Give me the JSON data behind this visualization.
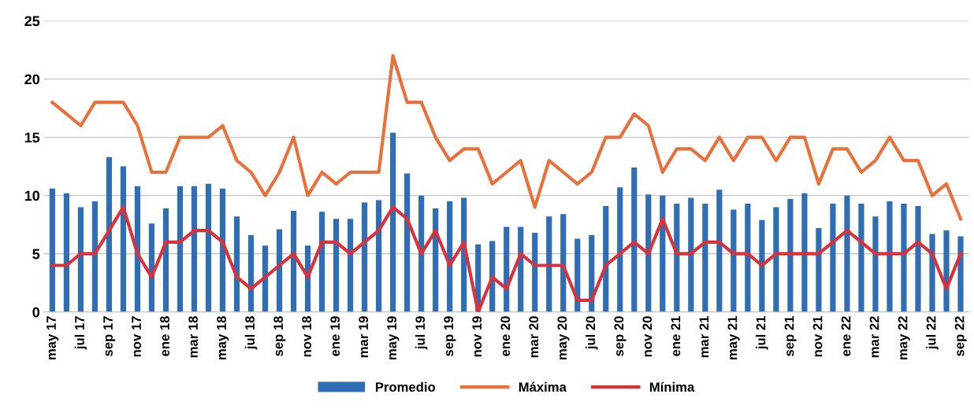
{
  "chart_data": {
    "type": "bar",
    "categories": [
      "may 17",
      null,
      "jul 17",
      null,
      "sep 17",
      null,
      "nov 17",
      null,
      "ene 18",
      null,
      "mar 18",
      null,
      "may 18",
      null,
      "jul 18",
      null,
      "sep 18",
      null,
      "nov 18",
      null,
      "ene 19",
      null,
      "mar 19",
      null,
      "may 19",
      null,
      "jul 19",
      null,
      "sep 19",
      null,
      "nov 19",
      null,
      "ene 20",
      null,
      "mar 20",
      null,
      "may 20",
      null,
      "jul 20",
      null,
      "sep 20",
      null,
      "nov 20",
      null,
      "ene 21",
      null,
      "mar 21",
      null,
      "may 21",
      null,
      "jul 21",
      null,
      "sep 21",
      null,
      "nov 21",
      null,
      "ene 22",
      null,
      "mar 22",
      null,
      "may 22",
      null,
      "jul 22",
      null,
      "sep 22"
    ],
    "series": [
      {
        "name": "Promedio",
        "color": "#2f6db5",
        "values": [
          10.6,
          10.2,
          9.0,
          9.5,
          13.3,
          12.5,
          10.8,
          7.6,
          8.9,
          10.8,
          10.8,
          11.0,
          10.6,
          8.2,
          6.6,
          5.7,
          7.1,
          8.7,
          5.7,
          8.6,
          8.0,
          8.0,
          9.4,
          9.6,
          15.4,
          11.9,
          10.0,
          8.9,
          9.5,
          9.8,
          5.8,
          6.1,
          7.3,
          7.3,
          6.8,
          8.2,
          8.4,
          6.3,
          6.6,
          9.1,
          10.7,
          12.4,
          10.1,
          10.0,
          9.3,
          9.8,
          9.3,
          10.5,
          8.8,
          9.3,
          7.9,
          9.0,
          9.7,
          10.2,
          7.2,
          9.3,
          10.0,
          9.3,
          8.2,
          9.5,
          9.3,
          9.1,
          6.7,
          7.0,
          6.5
        ]
      },
      {
        "name": "Máxima",
        "type": "line",
        "color": "#e8703a",
        "values": [
          18,
          17,
          16,
          18,
          18,
          18,
          16,
          12,
          12,
          15,
          15,
          15,
          16,
          13,
          12,
          10,
          12,
          15,
          10,
          12,
          11,
          12,
          12,
          12,
          22,
          18,
          18,
          15,
          13,
          14,
          14,
          11,
          12,
          13,
          9,
          13,
          12,
          11,
          12,
          15,
          15,
          17,
          16,
          12,
          14,
          14,
          13,
          15,
          13,
          15,
          15,
          13,
          15,
          15,
          11,
          14,
          14,
          12,
          13,
          15,
          13,
          13,
          10,
          11,
          8
        ]
      },
      {
        "name": "Mínima",
        "type": "line",
        "color": "#d9323a",
        "values": [
          4,
          4,
          5,
          5,
          7,
          9,
          5,
          3,
          6,
          6,
          7,
          7,
          6,
          3,
          2,
          3,
          4,
          5,
          3,
          6,
          6,
          5,
          6,
          7,
          9,
          8,
          5,
          7,
          4,
          6,
          0,
          3,
          2,
          5,
          4,
          4,
          4,
          1,
          1,
          4,
          5,
          6,
          5,
          8,
          5,
          5,
          6,
          6,
          5,
          5,
          4,
          5,
          5,
          5,
          5,
          6,
          7,
          6,
          5,
          5,
          5,
          6,
          5,
          2,
          5
        ]
      }
    ],
    "ylim": [
      0,
      25
    ],
    "yticks": [
      0,
      5,
      10,
      15,
      20,
      25
    ],
    "grid": "y",
    "legend": "bottom",
    "line_style": "solid",
    "marker": "none"
  }
}
